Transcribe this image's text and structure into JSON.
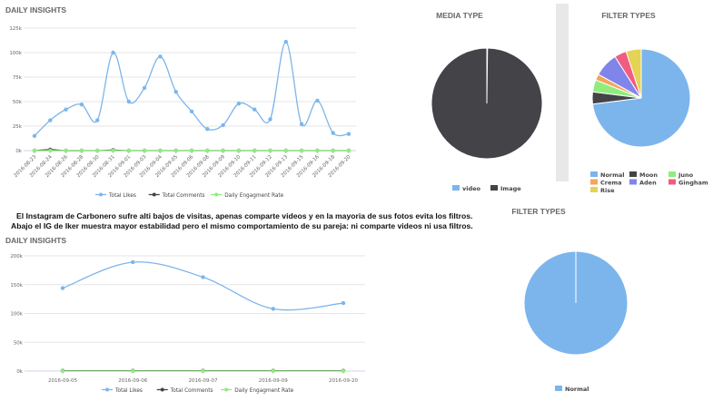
{
  "caption": {
    "line1": "El Instagram de Carbonero sufre alti bajos de visitas, apenas comparte videos y en la mayoria de sus fotos evita los filtros.",
    "line2": "Abajo el IG de Iker muestra mayor estabilidad pero el mismo comportamiento de su pareja: ni comparte videos ni usa filtros."
  },
  "colors": {
    "likes": "#7cb5ec",
    "comments": "#434348",
    "engagement": "#90ed7d",
    "grid": "#e6e6e6",
    "axis": "#ccd6eb"
  },
  "chart_data": [
    {
      "id": "c1",
      "type": "line",
      "title": "DAILY INSIGHTS",
      "categories": [
        "2016-08-23",
        "2016-08-24",
        "2016-08-26",
        "2016-08-28",
        "2016-08-30",
        "2016-08-31",
        "2016-09-01",
        "2016-09-03",
        "2016-09-04",
        "2016-09-05",
        "2016-09-06",
        "2016-09-08",
        "2016-09-09",
        "2016-09-10",
        "2016-09-11",
        "2016-09-12",
        "2016-09-13",
        "2016-09-15",
        "2016-09-16",
        "2016-09-18",
        "2016-09-20"
      ],
      "y_ticks": [
        "0k",
        "25k",
        "50k",
        "75k",
        "100k",
        "125k"
      ],
      "ylim": [
        0,
        125000
      ],
      "series": [
        {
          "name": "Total Likes",
          "color": "#7cb5ec",
          "values": [
            15000,
            31000,
            42000,
            47000,
            31000,
            100000,
            50000,
            64000,
            96000,
            60000,
            40000,
            22000,
            26000,
            48000,
            42000,
            32000,
            111000,
            27000,
            51000,
            18000,
            17000
          ]
        },
        {
          "name": "Total Comments",
          "color": "#434348",
          "values": [
            0,
            1000,
            0,
            0,
            0,
            500,
            0,
            0,
            0,
            0,
            0,
            0,
            0,
            0,
            0,
            0,
            0,
            0,
            0,
            0,
            0
          ]
        },
        {
          "name": "Daily Engagment Rate",
          "color": "#90ed7d",
          "values": [
            0,
            0,
            0,
            0,
            0,
            0,
            0,
            0,
            0,
            0,
            0,
            0,
            0,
            0,
            0,
            0,
            0,
            0,
            0,
            0,
            0
          ]
        }
      ]
    },
    {
      "id": "c2",
      "type": "pie",
      "title": "MEDIA TYPE",
      "labels": [
        "video",
        "Image"
      ],
      "values": [
        0.2,
        99.8
      ],
      "colors": [
        "#7cb5ec",
        "#434348"
      ]
    },
    {
      "id": "c3",
      "type": "pie",
      "title": "FILTER TYPES",
      "labels": [
        "Normal",
        "Moon",
        "Juno",
        "Crema",
        "Aden",
        "Gingham",
        "Rise"
      ],
      "values": [
        73,
        4,
        4,
        2,
        8,
        4,
        5
      ],
      "colors": [
        "#7cb5ec",
        "#434348",
        "#90ed7d",
        "#f7a35c",
        "#8085e9",
        "#f15c80",
        "#e4d354"
      ]
    },
    {
      "id": "c4",
      "type": "line",
      "title": "DAILY INSIGHTS",
      "categories": [
        "2016-09-05",
        "2016-09-06",
        "2016-09-07",
        "2016-09-09",
        "2016-09-20"
      ],
      "y_ticks": [
        "0k",
        "50k",
        "100k",
        "150k",
        "200k"
      ],
      "ylim": [
        0,
        200000
      ],
      "series": [
        {
          "name": "Total Likes",
          "color": "#7cb5ec",
          "values": [
            144000,
            189000,
            163000,
            108000,
            118000
          ]
        },
        {
          "name": "Total Comments",
          "color": "#434348",
          "values": [
            500,
            500,
            500,
            500,
            500
          ]
        },
        {
          "name": "Daily Engagment Rate",
          "color": "#90ed7d",
          "values": [
            0,
            0,
            0,
            0,
            0
          ]
        }
      ]
    },
    {
      "id": "c5",
      "type": "pie",
      "title": "FILTER TYPES",
      "labels": [
        "Normal"
      ],
      "values": [
        100
      ],
      "colors": [
        "#7cb5ec"
      ]
    }
  ]
}
